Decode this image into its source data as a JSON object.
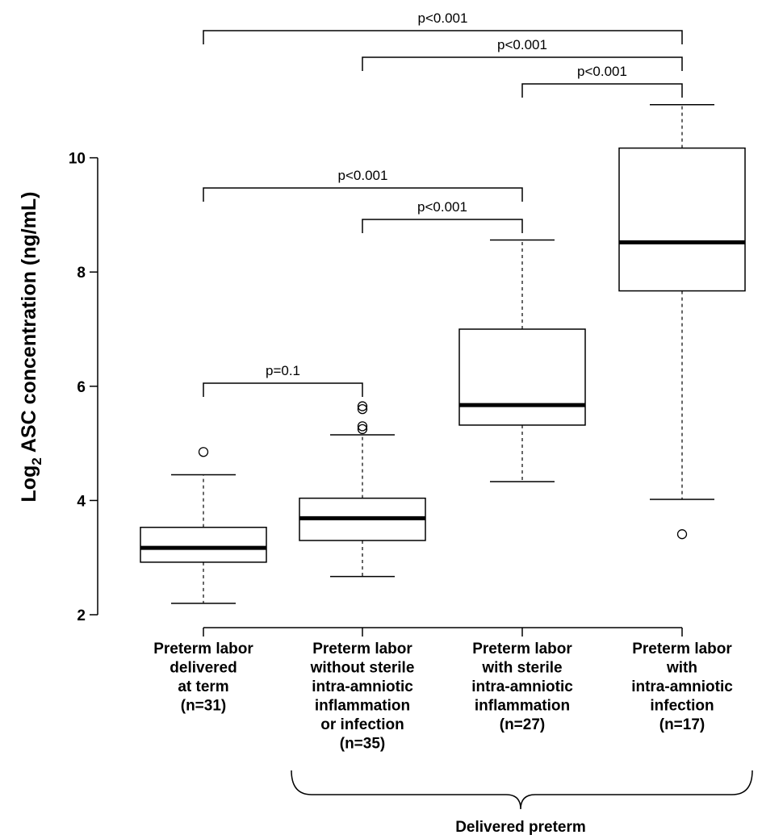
{
  "chart_data": {
    "type": "box",
    "title": "",
    "ylabel": {
      "main": "Log",
      "sub": "2",
      "rest": " ASC concentration (ng/mL)"
    },
    "xlabel": "",
    "ylim": [
      2,
      11
    ],
    "yticks": [
      2,
      4,
      6,
      8,
      10
    ],
    "grid": false,
    "categories": [
      {
        "lines": [
          "Preterm labor",
          "delivered",
          "at term",
          "(n=31)"
        ]
      },
      {
        "lines": [
          "Preterm labor",
          "without sterile",
          "intra-amniotic",
          "inflammation",
          "or infection",
          "(n=35)"
        ]
      },
      {
        "lines": [
          "Preterm labor",
          "with sterile",
          "intra-amniotic",
          "inflammation",
          "(n=27)"
        ]
      },
      {
        "lines": [
          "Preterm labor",
          "with",
          "intra-amniotic",
          "infection",
          "(n=17)"
        ]
      }
    ],
    "boxes": [
      {
        "whisker_low": 2.2,
        "q1": 2.92,
        "median": 3.17,
        "q3": 3.53,
        "whisker_high": 4.45,
        "outliers": [
          4.85
        ]
      },
      {
        "whisker_low": 2.67,
        "q1": 3.3,
        "median": 3.69,
        "q3": 4.04,
        "whisker_high": 5.15,
        "outliers": [
          5.25,
          5.3,
          5.6,
          5.65
        ]
      },
      {
        "whisker_low": 4.33,
        "q1": 5.32,
        "median": 5.67,
        "q3": 7.0,
        "whisker_high": 8.56,
        "outliers": []
      },
      {
        "whisker_low": 4.02,
        "q1": 7.67,
        "median": 8.52,
        "q3": 10.17,
        "whisker_high": 10.93,
        "outliers": [
          3.41
        ]
      }
    ],
    "comparisons": [
      {
        "from": 0,
        "to": 3,
        "label": "p<0.001"
      },
      {
        "from": 1,
        "to": 3,
        "label": "p<0.001"
      },
      {
        "from": 2,
        "to": 3,
        "label": "p<0.001"
      },
      {
        "from": 0,
        "to": 2,
        "label": "p<0.001"
      },
      {
        "from": 1,
        "to": 2,
        "label": "p<0.001"
      },
      {
        "from": 0,
        "to": 1,
        "label": "p=0.1"
      }
    ],
    "group_brace": {
      "from": 1,
      "to": 3,
      "label": "Delivered preterm"
    }
  }
}
